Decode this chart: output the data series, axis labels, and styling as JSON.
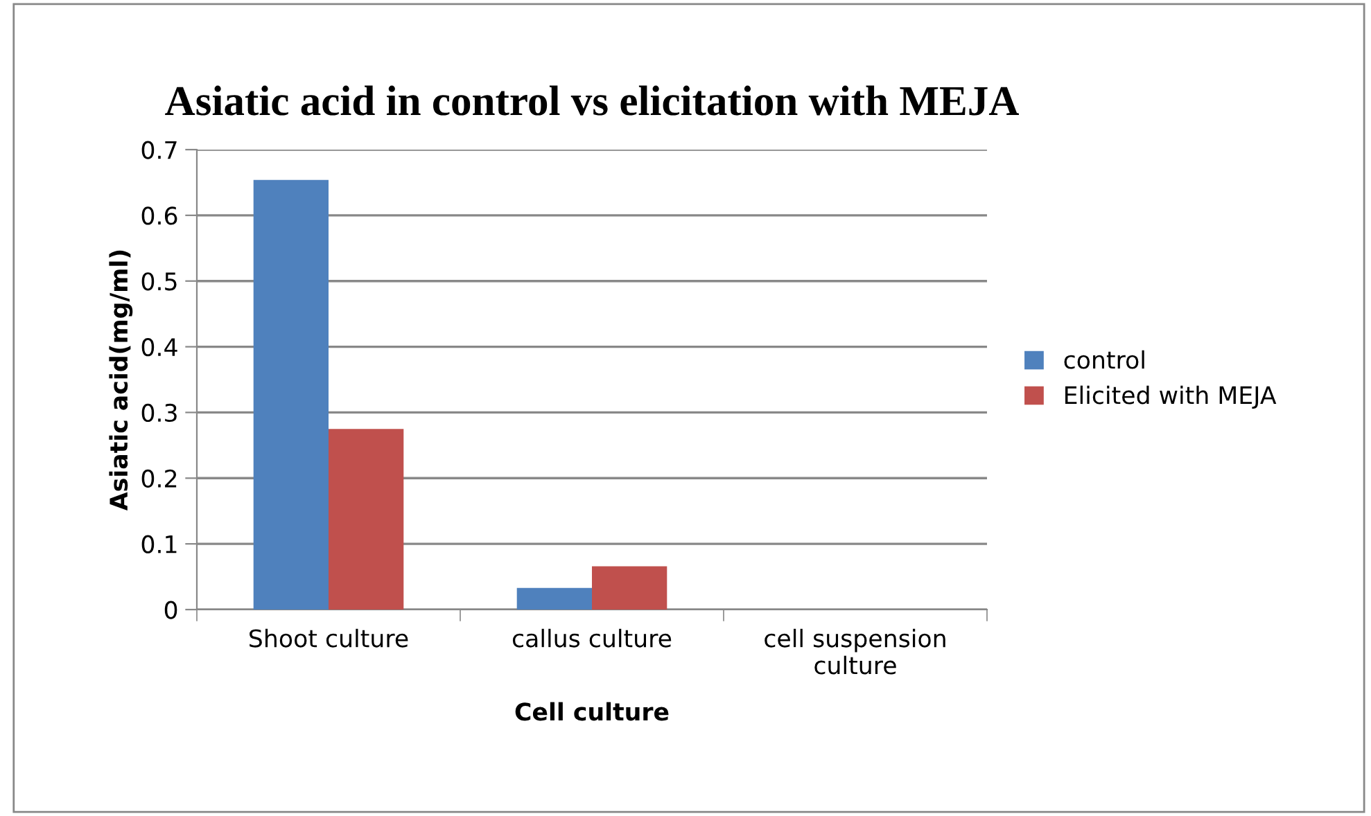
{
  "chart_data": {
    "type": "bar",
    "title": "Asiatic acid in control vs elicitation with MEJA",
    "xlabel": "Cell culture",
    "ylabel": "Asiatic acid(mg/ml)",
    "categories": [
      "Shoot culture",
      "callus culture",
      "cell suspension\nculture"
    ],
    "series": [
      {
        "name": "control",
        "color": "#4f81bd",
        "values": [
          0.654,
          0.033,
          0
        ]
      },
      {
        "name": "Elicited with MEJA",
        "color": "#c0504d",
        "values": [
          0.275,
          0.066,
          0
        ]
      }
    ],
    "ylim": [
      0,
      0.7
    ],
    "yticks": [
      0,
      {
        "value": 0.1,
        "label": "0.1"
      },
      {
        "value": 0.2,
        "label": "0.2"
      },
      {
        "value": 0.3,
        "label": "0.3"
      },
      {
        "value": 0.4,
        "label": "0.4"
      },
      {
        "value": 0.5,
        "label": "0.5"
      },
      {
        "value": 0.6,
        "label": "0.6"
      },
      {
        "value": 0.7,
        "label": "0.7"
      }
    ],
    "grid": "y",
    "legend": "right"
  }
}
